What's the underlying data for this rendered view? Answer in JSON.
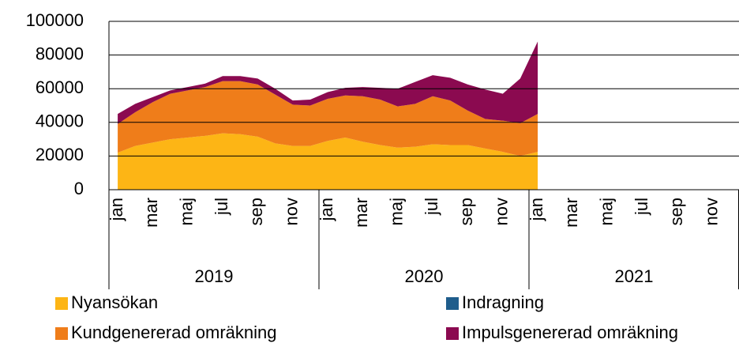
{
  "chart_data": {
    "type": "stacked_area",
    "categories": [
      "jan",
      null,
      "mar",
      null,
      "maj",
      null,
      "jul",
      null,
      "sep",
      null,
      "nov",
      null,
      "jan",
      null,
      "mar",
      null,
      "maj",
      null,
      "jul",
      null,
      "sep",
      null,
      "nov",
      null,
      "jan",
      null,
      "mar",
      null,
      "maj",
      null,
      "jul",
      null,
      "sep",
      null,
      "nov",
      null
    ],
    "years": [
      "2019",
      "2020",
      "2021"
    ],
    "ylim": [
      0,
      100000
    ],
    "yticks": [
      0,
      20000,
      40000,
      60000,
      80000,
      100000
    ],
    "grid": true,
    "series": [
      {
        "name": "Nyansökan",
        "color": "#fdb515",
        "values": [
          22000,
          26000,
          28000,
          30000,
          31000,
          32000,
          33500,
          33000,
          31500,
          27500,
          26000,
          26000,
          29000,
          31000,
          28500,
          26500,
          25000,
          25500,
          27000,
          26500,
          26500,
          24500,
          22500,
          20000,
          22500,
          null,
          null,
          null,
          null,
          null,
          null,
          null,
          null,
          null,
          null,
          null
        ]
      },
      {
        "name": "Kundgenererad omräkning",
        "color": "#ef7d1a",
        "values": [
          17000,
          20000,
          24000,
          27000,
          28000,
          29000,
          31000,
          31500,
          31000,
          29000,
          24500,
          24000,
          25000,
          25000,
          27000,
          27000,
          24500,
          25500,
          28500,
          26500,
          20500,
          17500,
          18500,
          19500,
          22500,
          null,
          null,
          null,
          null,
          null,
          null,
          null,
          null,
          null,
          null,
          null
        ]
      },
      {
        "name": "Indragning",
        "color": "#1f5d8c",
        "values": [
          0,
          0,
          0,
          0,
          0,
          0,
          0,
          0,
          0,
          0,
          0,
          0,
          0,
          0,
          0,
          0,
          0,
          0,
          0,
          0,
          0,
          0,
          0,
          0,
          0,
          null,
          null,
          null,
          null,
          null,
          null,
          null,
          null,
          null,
          null,
          null
        ]
      },
      {
        "name": "Impulsgenererad omräkning",
        "color": "#8b0a50",
        "values": [
          6000,
          5000,
          3000,
          2000,
          2000,
          2000,
          3000,
          3000,
          3500,
          3500,
          2500,
          3500,
          4000,
          4500,
          5500,
          7000,
          10500,
          13000,
          12500,
          13500,
          15500,
          17500,
          16000,
          26500,
          43000,
          null,
          null,
          null,
          null,
          null,
          null,
          null,
          null,
          null,
          null,
          null
        ]
      }
    ]
  }
}
